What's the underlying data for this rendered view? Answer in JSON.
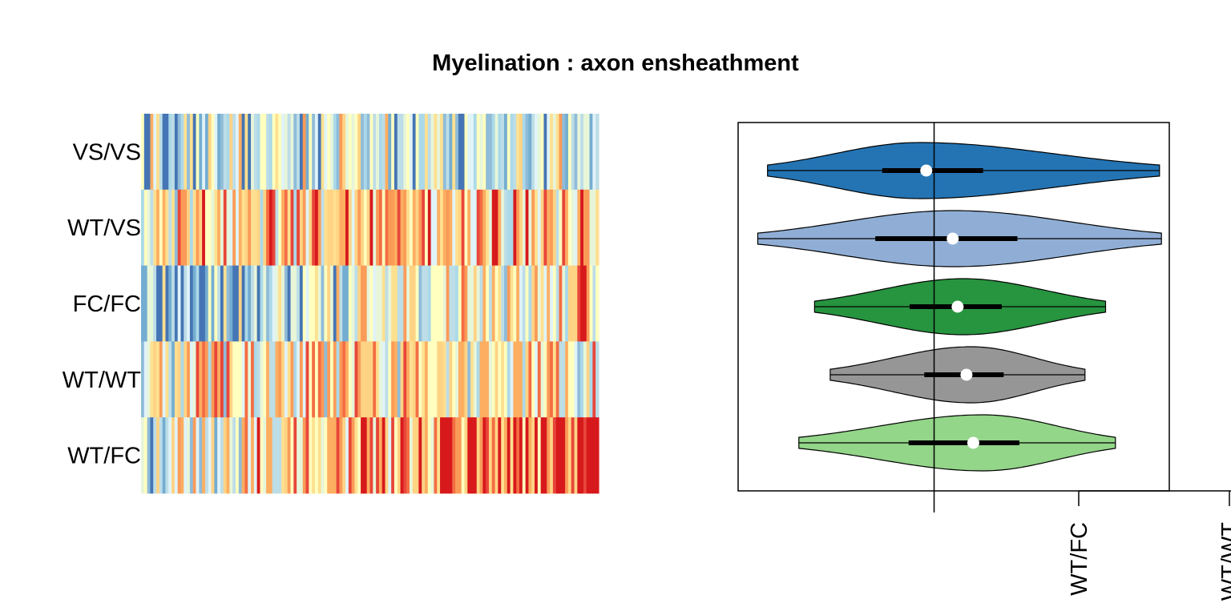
{
  "chart_data": [
    {
      "type": "heatmap",
      "title": "Myelination : axon ensheathment",
      "rows": [
        "VS/VS",
        "WT/VS",
        "FC/FC",
        "WT/WT",
        "WT/FC"
      ],
      "n_columns": 150,
      "palette": [
        "#d7191c",
        "#e8463a",
        "#f46d43",
        "#fa9b58",
        "#fdae61",
        "#fed384",
        "#fee090",
        "#ffffbf",
        "#e7f5d9",
        "#e0f3f8",
        "#bddde7",
        "#abd9e9",
        "#90bcd9",
        "#74add1",
        "#4575b4"
      ],
      "row_bias": [
        -0.05,
        0.2,
        -0.05,
        0.15,
        0.25
      ]
    },
    {
      "type": "violin",
      "orientation": "horizontal",
      "categories": [
        "VS/VS",
        "WT/VS",
        "FC/FC",
        "WT/WT",
        "WT/FC"
      ],
      "xlim": [
        -2.0,
        2.4
      ],
      "reference_line": 0,
      "colors": [
        "#2474b3",
        "#90aed5",
        "#27943f",
        "#969696",
        "#93d589"
      ],
      "series": [
        {
          "min": -1.7,
          "q1": -0.53,
          "median": -0.08,
          "q3": 0.5,
          "max": 2.3,
          "peak": -0.15
        },
        {
          "min": -1.8,
          "q1": -0.6,
          "median": 0.19,
          "q3": 0.85,
          "max": 2.32,
          "peak": 0.2
        },
        {
          "min": -1.22,
          "q1": -0.25,
          "median": 0.24,
          "q3": 0.69,
          "max": 1.75,
          "peak": 0.3
        },
        {
          "min": -1.06,
          "q1": -0.1,
          "median": 0.33,
          "q3": 0.71,
          "max": 1.54,
          "peak": 0.38
        },
        {
          "min": -1.38,
          "q1": -0.26,
          "median": 0.4,
          "q3": 0.87,
          "max": 1.85,
          "peak": 0.5
        }
      ],
      "axis_tick_labels": [
        "WT/FC",
        "WT/WT"
      ]
    }
  ]
}
